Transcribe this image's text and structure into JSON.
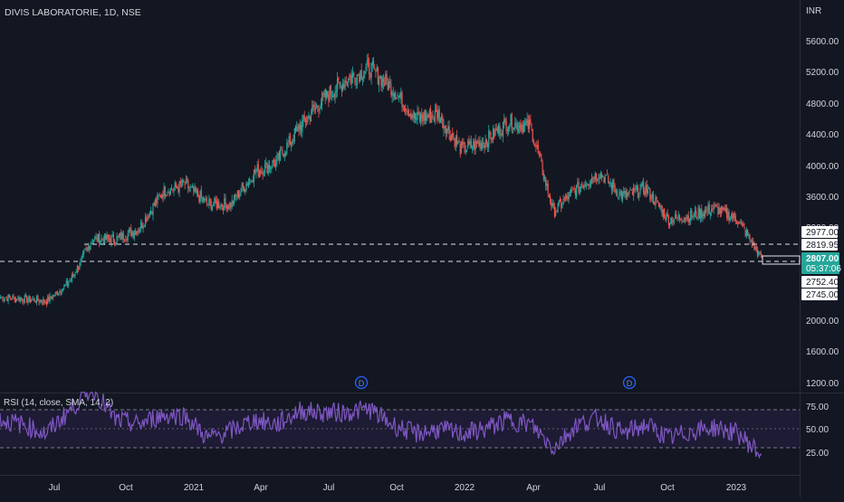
{
  "header": {
    "symbol_title": "DIVIS LABORATORIE, 1D, NSE"
  },
  "price_axis": {
    "currency": "INR",
    "ticks": [
      "5600.00",
      "5200.00",
      "4800.00",
      "4400.00",
      "4000.00",
      "3600.00",
      "3200.00",
      "2000.00",
      "1600.00",
      "1200.00"
    ]
  },
  "rsi_axis": {
    "ticks": [
      "75.00",
      "50.00",
      "25.00"
    ]
  },
  "time_axis": {
    "ticks": [
      "Jul",
      "Oct",
      "2021",
      "Apr",
      "Jul",
      "Oct",
      "2022",
      "Apr",
      "Jul",
      "Oct",
      "2023"
    ]
  },
  "price_labels": {
    "upper_line_top": "2977.00",
    "upper_line": "2819.95",
    "last_price": "2807.00",
    "countdown": "05:37:06",
    "lower_line": "2752.40",
    "lower_line_bottom": "2745.00"
  },
  "dividend_markers": [
    "D",
    "D"
  ],
  "rsi_legend": "RSI (14, close, SMA, 14, 2)",
  "colors": {
    "background": "#131722",
    "up_candle": "#26a69a",
    "down_candle": "#ef5350",
    "rsi_line": "#7e57c2",
    "rsi_band_fill": "#1e1b35",
    "grid": "#1e222d",
    "axis_text": "#d1d4dc",
    "last_price_badge": "#26a69a",
    "dividend_marker": "#2962ff"
  },
  "chart_data": [
    {
      "type": "candlestick",
      "title": "DIVIS LABORATORIE, 1D, NSE",
      "ylabel": "INR",
      "x": [
        "2020-05",
        "2020-06",
        "2020-07",
        "2020-08",
        "2020-09",
        "2020-10",
        "2020-11",
        "2020-12",
        "2021-01",
        "2021-02",
        "2021-03",
        "2021-04",
        "2021-05",
        "2021-06",
        "2021-07",
        "2021-08",
        "2021-09",
        "2021-10",
        "2021-11",
        "2021-12",
        "2022-01",
        "2022-02",
        "2022-03",
        "2022-04",
        "2022-05",
        "2022-06",
        "2022-07",
        "2022-08",
        "2022-09",
        "2022-10",
        "2022-11",
        "2022-12",
        "2023-01",
        "2023-02"
      ],
      "close_anchors": [
        2300,
        2280,
        2250,
        2500,
        3050,
        3050,
        3180,
        3650,
        3750,
        3500,
        3500,
        3900,
        4050,
        4500,
        4850,
        5100,
        5250,
        5000,
        4600,
        4650,
        4200,
        4300,
        4550,
        4500,
        3400,
        3700,
        3900,
        3600,
        3700,
        3300,
        3350,
        3450,
        3300,
        2807
      ],
      "horizontal_lines": [
        2819.95,
        2752.4
      ],
      "last_price": 2807.0,
      "ylim": [
        1050,
        5850
      ]
    },
    {
      "type": "line",
      "title": "RSI (14, close, SMA, 14, 2)",
      "x": [
        "2020-05",
        "2020-06",
        "2020-07",
        "2020-08",
        "2020-09",
        "2020-10",
        "2020-11",
        "2020-12",
        "2021-01",
        "2021-02",
        "2021-03",
        "2021-04",
        "2021-05",
        "2021-06",
        "2021-07",
        "2021-08",
        "2021-09",
        "2021-10",
        "2021-11",
        "2021-12",
        "2022-01",
        "2022-02",
        "2022-03",
        "2022-04",
        "2022-05",
        "2022-06",
        "2022-07",
        "2022-08",
        "2022-09",
        "2022-10",
        "2022-11",
        "2022-12",
        "2023-01",
        "2023-02"
      ],
      "rsi_anchors": [
        60,
        55,
        45,
        70,
        95,
        60,
        55,
        65,
        65,
        40,
        48,
        60,
        55,
        70,
        68,
        68,
        72,
        55,
        45,
        50,
        45,
        50,
        60,
        55,
        30,
        55,
        62,
        45,
        55,
        40,
        48,
        52,
        45,
        22
      ],
      "reference_levels": [
        70,
        50,
        30
      ],
      "ylim": [
        10,
        90
      ]
    }
  ]
}
